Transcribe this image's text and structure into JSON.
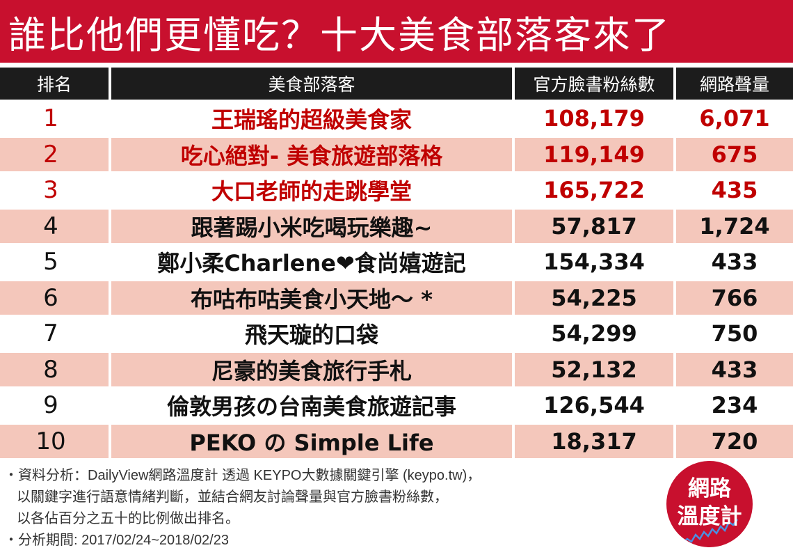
{
  "title": "誰比他們更懂吃？十大美食部落客來了",
  "headers": {
    "rank": "排名",
    "blog": "美食部落客",
    "fans": "官方臉書粉絲數",
    "volume": "網路聲量"
  },
  "rows": [
    {
      "rank": "1",
      "blog": "王瑞瑤的超級美食家",
      "fans": "108,179",
      "volume": "6,071"
    },
    {
      "rank": "2",
      "blog": "吃心絕對- 美食旅遊部落格",
      "fans": "119,149",
      "volume": "675"
    },
    {
      "rank": "3",
      "blog": "大口老師的走跳學堂",
      "fans": "165,722",
      "volume": "435"
    },
    {
      "rank": "4",
      "blog": "跟著踢小米吃喝玩樂趣~",
      "fans": "57,817",
      "volume": "1,724"
    },
    {
      "rank": "5",
      "blog": "鄭小柔Charlene❤食尚嬉遊記",
      "fans": "154,334",
      "volume": "433"
    },
    {
      "rank": "6",
      "blog": "布咕布咕美食小天地～ *",
      "fans": "54,225",
      "volume": "766"
    },
    {
      "rank": "7",
      "blog": "飛天璇的口袋",
      "fans": "54,299",
      "volume": "750"
    },
    {
      "rank": "8",
      "blog": "尼豪的美食旅行手札",
      "fans": "52,132",
      "volume": "433"
    },
    {
      "rank": "9",
      "blog": "倫敦男孩の台南美食旅遊記事",
      "fans": "126,544",
      "volume": "234"
    },
    {
      "rank": "10",
      "blog": "PEKO の Simple Life",
      "fans": "18,317",
      "volume": "720"
    }
  ],
  "footer": {
    "line1": "・資料分析：DailyView網路溫度計 透過 KEYPO大數據關鍵引擎 (keypo.tw)，",
    "line2": "以關鍵字進行語意情緒判斷，並結合網友討論聲量與官方臉書粉絲數，",
    "line3": "以各佔百分之五十的比例做出排名。",
    "line4": "・分析期間: 2017/02/24~2018/02/23"
  },
  "logo": {
    "line1": "網路",
    "line2": "溫度計"
  },
  "colors": {
    "brand_red": "#c8102e",
    "header_dark": "#1c1c1c",
    "stripe_pink": "#f4c7bb",
    "top3_text": "#c00000"
  }
}
